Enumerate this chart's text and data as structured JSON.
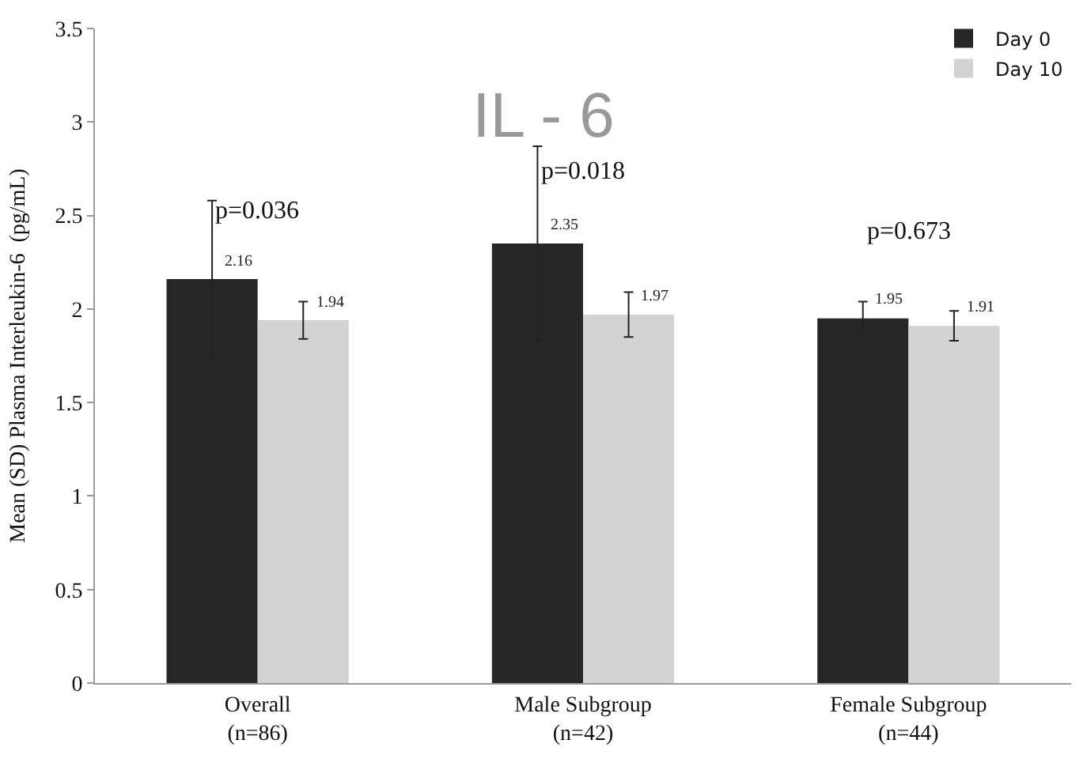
{
  "chart_data": {
    "type": "bar",
    "title": "IL - 6",
    "ylabel": "Mean (SD) Plasma Interleukin-6  (pg/mL)",
    "categories": [
      "Overall\n(n=86)",
      "Male Subgroup\n(n=42)",
      "Female Subgroup\n(n=44)"
    ],
    "series": [
      {
        "name": "Day 0",
        "color": "#262626",
        "values": [
          2.16,
          2.35,
          1.95
        ],
        "errors": [
          0.42,
          0.52,
          0.09
        ]
      },
      {
        "name": "Day 10",
        "color": "#d3d3d3",
        "values": [
          1.94,
          1.97,
          1.91
        ],
        "errors": [
          0.1,
          0.12,
          0.08
        ]
      }
    ],
    "ylim": [
      0,
      3.5
    ],
    "yticks": [
      0,
      0.5,
      1,
      1.5,
      2,
      2.5,
      3,
      3.5
    ],
    "legend": "top right",
    "data_labels": true,
    "annotations": [
      "p=0.036",
      "p=0.018",
      "p=0.673"
    ]
  }
}
